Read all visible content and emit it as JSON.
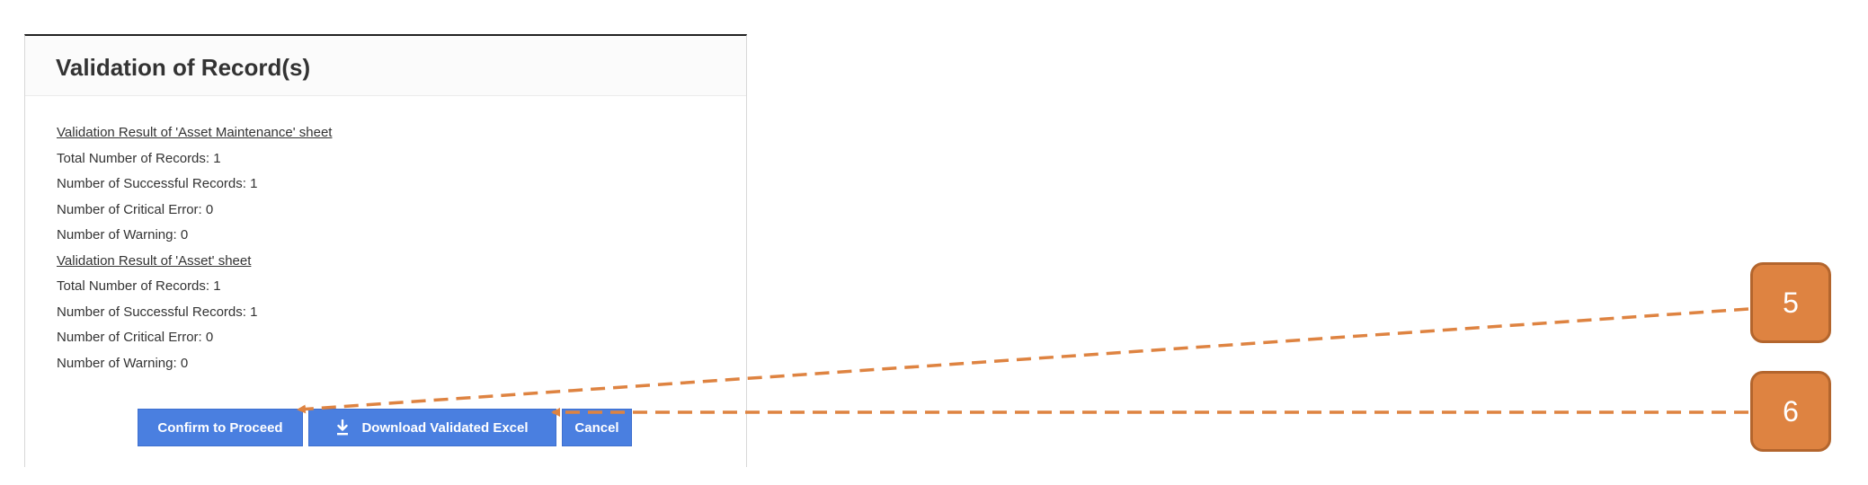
{
  "modal": {
    "title": "Validation of Record(s)",
    "sections": [
      {
        "heading": "Validation Result of 'Asset Maintenance' sheet",
        "lines": [
          "Total Number of Records: 1",
          "Number of Successful Records: 1",
          "Number of Critical Error: 0",
          "Number of Warning: 0"
        ]
      },
      {
        "heading": "Validation Result of 'Asset' sheet",
        "lines": [
          "Total Number of Records: 1",
          "Number of Successful Records: 1",
          "Number of Critical Error: 0",
          "Number of Warning: 0"
        ]
      }
    ],
    "buttons": {
      "confirm_label": "Confirm to Proceed",
      "download_label": "Download Validated Excel",
      "cancel_label": "Cancel"
    }
  },
  "callouts": {
    "five": "5",
    "six": "6"
  },
  "colors": {
    "button": "#4a7fe0",
    "callout": "#de8341",
    "callout_border": "#b3652d",
    "arrow": "#de8341"
  },
  "icons": {
    "download": "download-icon"
  }
}
